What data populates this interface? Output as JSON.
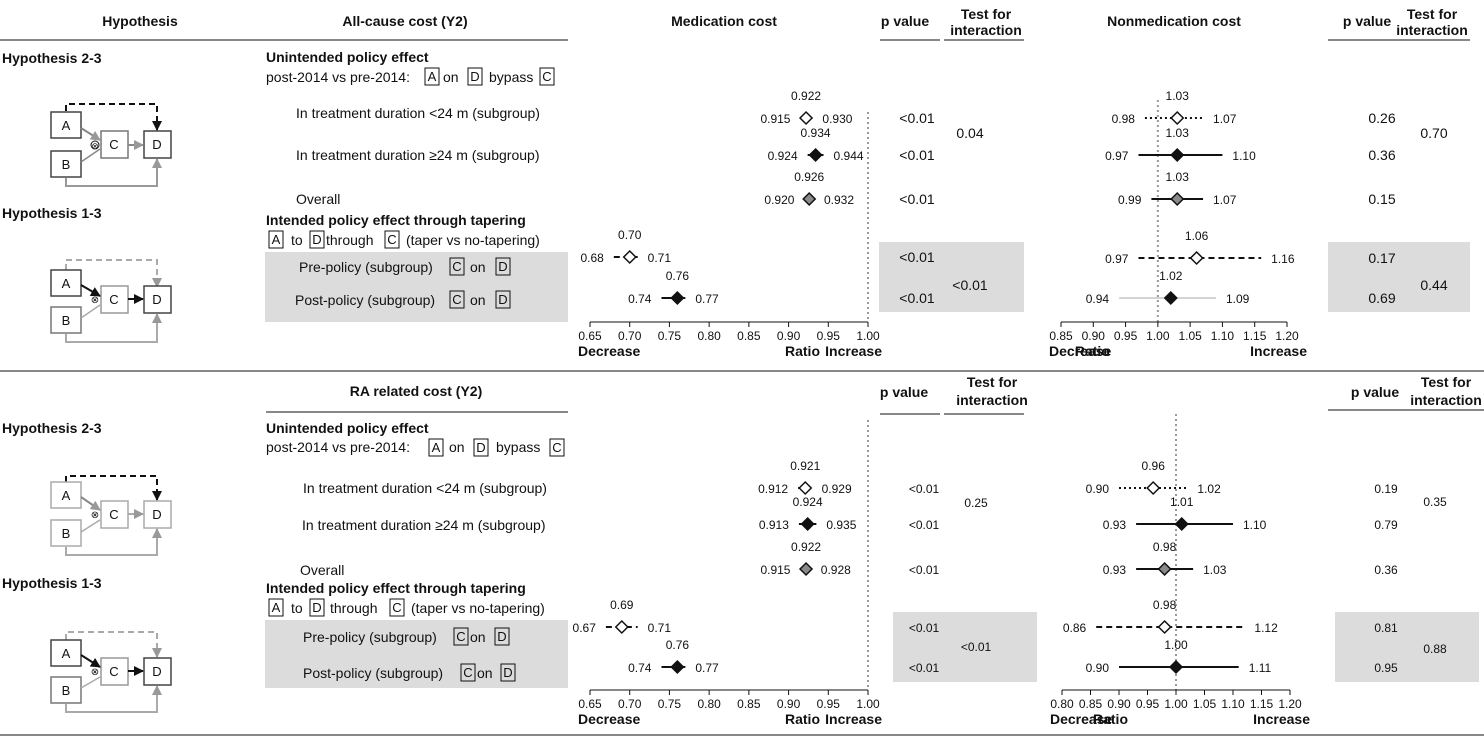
{
  "headers": {
    "hypothesis": "Hypothesis",
    "panel1_cost": "All-cause cost (Y2)",
    "panel2_cost": "RA related cost (Y2)",
    "medication": "Medication cost",
    "nonmedication": "Nonmedication cost",
    "p_value": "p value",
    "test_line1": "Test for",
    "test_line2": "interaction"
  },
  "hypotheses": {
    "h23": "Hypothesis 2-3",
    "h13": "Hypothesis 1-3"
  },
  "diagram_nodes": [
    "A",
    "B",
    "C",
    "D"
  ],
  "labels": {
    "unintended_title": "Unintended policy effect",
    "unintended_desc_p1": "post-2014 vs pre-2014:",
    "word_on": "on",
    "word_bypass": "bypass",
    "word_to": "to",
    "word_through": "through",
    "intended_title": "Intended policy effect through tapering",
    "intended_desc_tail": "(taper vs no-tapering)",
    "row_lt24": "In treatment duration <24 m (subgroup)",
    "row_ge24": "In treatment duration ≥24 m (subgroup)",
    "row_overall": "Overall",
    "row_pre": "Pre-policy (subgroup)",
    "row_post": "Post-policy (subgroup)"
  },
  "axis_labels": {
    "decrease": "Decrease",
    "ratio": "Ratio",
    "increase": "Increase"
  },
  "colors": {
    "shade": "#dcdcdc",
    "ink": "#111111",
    "grey_marker": "#8a8a8a",
    "dotted_ref": "#999999"
  },
  "chart_data": [
    {
      "type": "forest",
      "title": "All-cause cost (Y2) — Medication cost",
      "xlim": [
        0.65,
        1.0
      ],
      "ticks": [
        "0.65",
        "0.70",
        "0.75",
        "0.80",
        "0.85",
        "0.90",
        "0.95",
        "1.00"
      ],
      "reference": 1.0,
      "rows": [
        {
          "row": "In treatment duration <24 m (subgroup)",
          "est": "0.922",
          "lo": "0.915",
          "hi": "0.930",
          "p": "<0.01",
          "marker": "open",
          "line": "dotted"
        },
        {
          "row": "In treatment duration ≥24 m (subgroup)",
          "est": "0.934",
          "lo": "0.924",
          "hi": "0.944",
          "p": "<0.01",
          "marker": "filled",
          "line": "solid"
        },
        {
          "row": "Overall",
          "est": "0.926",
          "lo": "0.920",
          "hi": "0.932",
          "p": "<0.01",
          "marker": "grey",
          "line": "solid"
        },
        {
          "row": "Pre-policy (subgroup)",
          "est": "0.70",
          "lo": "0.68",
          "hi": "0.71",
          "p": "<0.01",
          "marker": "open",
          "line": "dashed"
        },
        {
          "row": "Post-policy (subgroup)",
          "est": "0.76",
          "lo": "0.74",
          "hi": "0.77",
          "p": "<0.01",
          "marker": "filled",
          "line": "solid"
        }
      ],
      "interaction": [
        "0.04",
        "<0.01"
      ]
    },
    {
      "type": "forest",
      "title": "All-cause cost (Y2) — Nonmedication cost",
      "xlim": [
        0.85,
        1.2
      ],
      "ticks": [
        "0.85",
        "0.90",
        "0.95",
        "1.00",
        "1.05",
        "1.10",
        "1.15",
        "1.20"
      ],
      "reference": 1.0,
      "rows": [
        {
          "row": "In treatment duration <24 m (subgroup)",
          "est": "1.03",
          "lo": "0.98",
          "hi": "1.07",
          "p": "0.26",
          "marker": "open",
          "line": "dotted"
        },
        {
          "row": "In treatment duration ≥24 m (subgroup)",
          "est": "1.03",
          "lo": "0.97",
          "hi": "1.10",
          "p": "0.36",
          "marker": "filled",
          "line": "solid"
        },
        {
          "row": "Overall",
          "est": "1.03",
          "lo": "0.99",
          "hi": "1.07",
          "p": "0.15",
          "marker": "grey",
          "line": "solid"
        },
        {
          "row": "Pre-policy (subgroup)",
          "est": "1.06",
          "lo": "0.97",
          "hi": "1.16",
          "p": "0.17",
          "marker": "open",
          "line": "dashed"
        },
        {
          "row": "Post-policy (subgroup)",
          "est": "1.02",
          "lo": "0.94",
          "hi": "1.09",
          "p": "0.69",
          "marker": "filled",
          "line": "thin"
        }
      ],
      "interaction": [
        "0.70",
        "0.44"
      ]
    },
    {
      "type": "forest",
      "title": "RA related cost (Y2) — Medication cost",
      "xlim": [
        0.65,
        1.0
      ],
      "ticks": [
        "0.65",
        "0.70",
        "0.75",
        "0.80",
        "0.85",
        "0.90",
        "0.95",
        "1.00"
      ],
      "reference": 1.0,
      "rows": [
        {
          "row": "In treatment duration <24 m (subgroup)",
          "est": "0.921",
          "lo": "0.912",
          "hi": "0.929",
          "p": "<0.01",
          "marker": "open",
          "line": "dotted"
        },
        {
          "row": "In treatment duration ≥24 m (subgroup)",
          "est": "0.924",
          "lo": "0.913",
          "hi": "0.935",
          "p": "<0.01",
          "marker": "filled",
          "line": "solid"
        },
        {
          "row": "Overall",
          "est": "0.922",
          "lo": "0.915",
          "hi": "0.928",
          "p": "<0.01",
          "marker": "grey",
          "line": "solid"
        },
        {
          "row": "Pre-policy (subgroup)",
          "est": "0.69",
          "lo": "0.67",
          "hi": "0.71",
          "p": "<0.01",
          "marker": "open",
          "line": "dashed"
        },
        {
          "row": "Post-policy (subgroup)",
          "est": "0.76",
          "lo": "0.74",
          "hi": "0.77",
          "p": "<0.01",
          "marker": "filled",
          "line": "solid"
        }
      ],
      "interaction": [
        "0.25",
        "<0.01"
      ]
    },
    {
      "type": "forest",
      "title": "RA related cost (Y2) — Nonmedication cost",
      "xlim": [
        0.8,
        1.2
      ],
      "ticks": [
        "0.80",
        "0.85",
        "0.90",
        "0.95",
        "1.00",
        "1.05",
        "1.10",
        "1.15",
        "1.20"
      ],
      "reference": 1.0,
      "rows": [
        {
          "row": "In treatment duration <24 m (subgroup)",
          "est": "0.96",
          "lo": "0.90",
          "hi": "1.02",
          "p": "0.19",
          "marker": "open",
          "line": "dotted"
        },
        {
          "row": "In treatment duration ≥24 m (subgroup)",
          "est": "1.01",
          "lo": "0.93",
          "hi": "1.10",
          "p": "0.79",
          "marker": "filled",
          "line": "solid"
        },
        {
          "row": "Overall",
          "est": "0.98",
          "lo": "0.93",
          "hi": "1.03",
          "p": "0.36",
          "marker": "grey",
          "line": "solid"
        },
        {
          "row": "Pre-policy (subgroup)",
          "est": "0.98",
          "lo": "0.86",
          "hi": "1.12",
          "p": "0.81",
          "marker": "open",
          "line": "dashed"
        },
        {
          "row": "Post-policy (subgroup)",
          "est": "1.00",
          "lo": "0.90",
          "hi": "1.11",
          "p": "0.95",
          "marker": "filled",
          "line": "solid"
        }
      ],
      "interaction": [
        "0.35",
        "0.88"
      ]
    }
  ]
}
